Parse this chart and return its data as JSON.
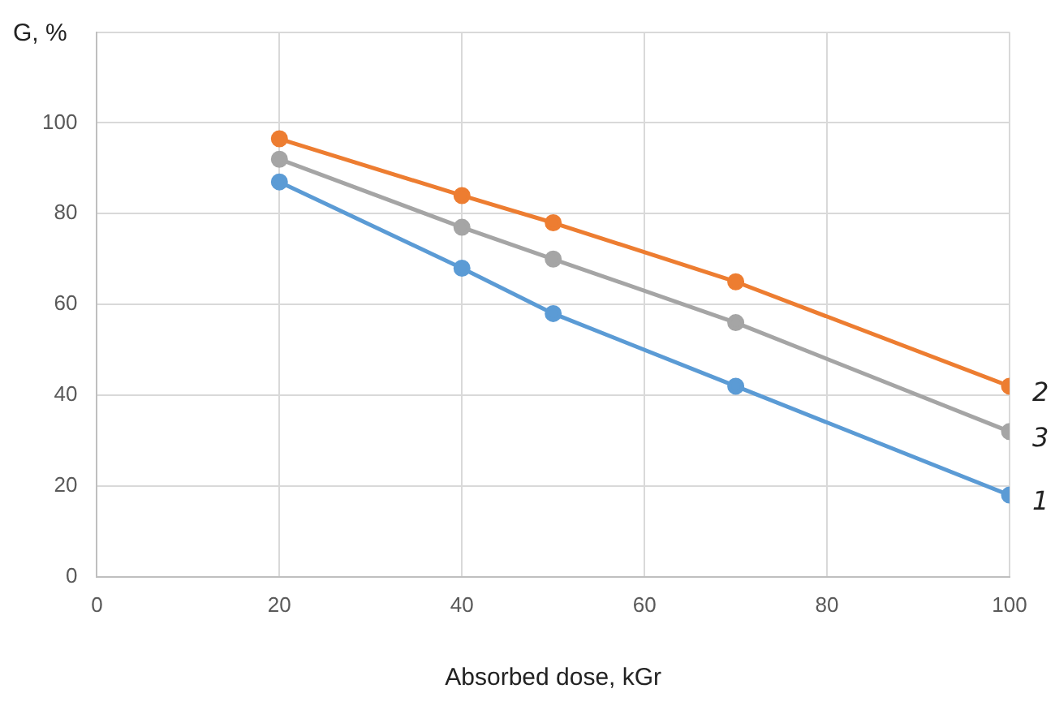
{
  "chart_data": {
    "type": "line",
    "xlabel": "Absorbed dose, kGr",
    "ylabel": "G, %",
    "x": [
      20,
      40,
      50,
      70,
      100
    ],
    "series": [
      {
        "name": "1",
        "color": "#5b9bd5",
        "values": [
          87,
          68,
          58,
          42,
          18
        ]
      },
      {
        "name": "2",
        "color": "#ed7d31",
        "values": [
          96.5,
          84,
          78,
          65,
          42
        ]
      },
      {
        "name": "3",
        "color": "#a5a5a5",
        "values": [
          92,
          77,
          70,
          56,
          32
        ]
      }
    ],
    "xlim": [
      0,
      100
    ],
    "xticks": [
      0,
      20,
      40,
      60,
      80,
      100
    ],
    "ylim": [
      0,
      120
    ],
    "yticks": [
      0,
      20,
      40,
      60,
      80,
      100,
      {
        "value": 120,
        "label": null
      }
    ],
    "grid": true,
    "legend": false,
    "marker": "circle",
    "line_style": "solid"
  }
}
